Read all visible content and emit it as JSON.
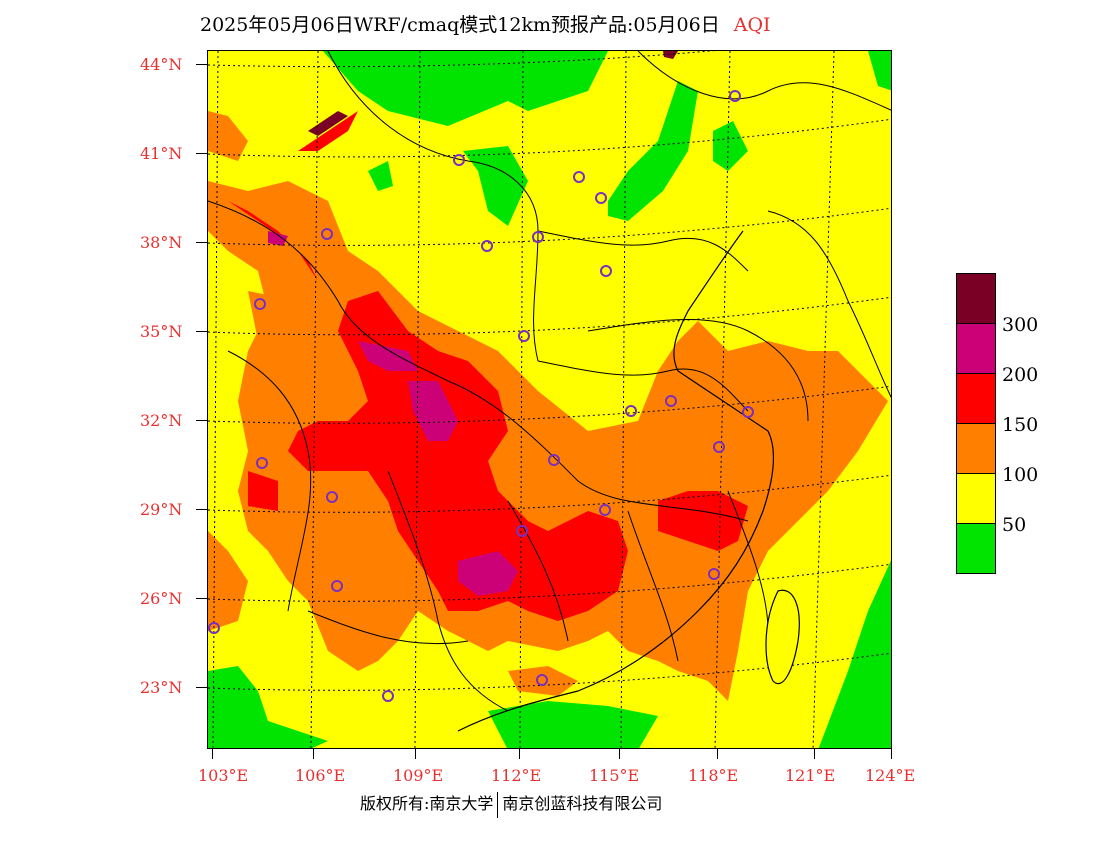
{
  "title": {
    "main": "2025年05月06日WRF/cmaq模式12km预报产品:05月06日",
    "variable": "AQI"
  },
  "axes": {
    "lat_labels": [
      "44°N",
      "41°N",
      "38°N",
      "35°N",
      "32°N",
      "29°N",
      "26°N",
      "23°N"
    ],
    "lon_labels": [
      "103°E",
      "106°E",
      "109°E",
      "112°E",
      "115°E",
      "118°E",
      "121°E",
      "124°E"
    ]
  },
  "legend": {
    "labels": [
      "300",
      "200",
      "150",
      "100",
      "50"
    ],
    "colors": [
      "#7a0026",
      "#cc0077",
      "#ff0000",
      "#ff8000",
      "#ffff00",
      "#00e400"
    ]
  },
  "footer": {
    "left": "版权所有:南京大学",
    "right": "南京创蓝科技有限公司"
  },
  "colors": {
    "good": "#00e400",
    "moderate": "#ffff00",
    "usg": "#ff8000",
    "unhealthy": "#ff0000",
    "very_unhealthy": "#cc0077",
    "hazardous": "#7a0026",
    "labels": "#e8302f",
    "station_marker": "#7b2fbe"
  }
}
